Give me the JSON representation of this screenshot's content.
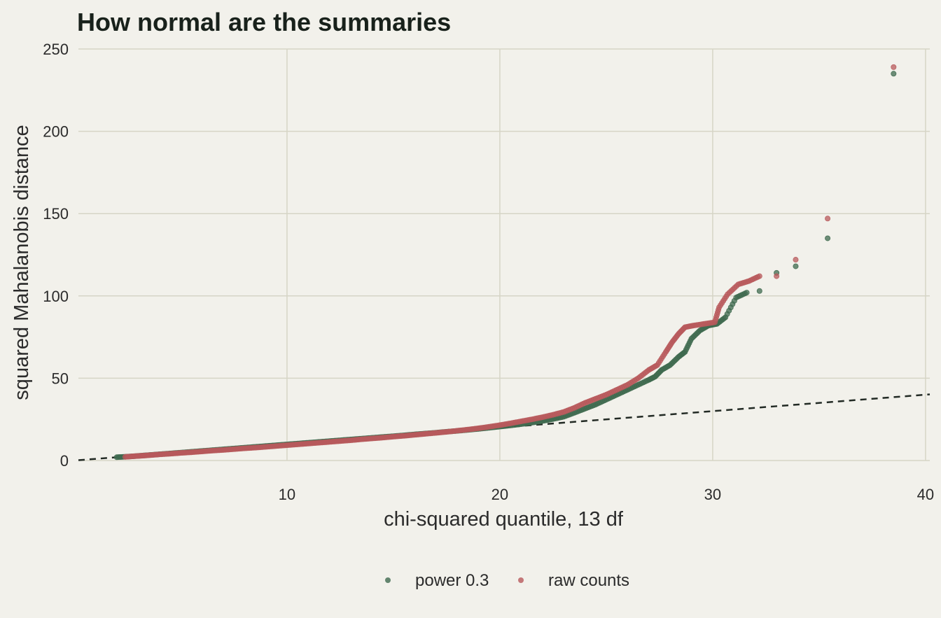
{
  "chart_data": {
    "type": "scatter",
    "title": "How normal are the summaries",
    "xlabel": "chi-squared quantile, 13 df",
    "ylabel": "squared Mahalanobis distance",
    "xlim": [
      0.2,
      40.2
    ],
    "ylim": [
      0,
      250
    ],
    "xticks": [
      10,
      20,
      30,
      40
    ],
    "yticks": [
      0,
      50,
      100,
      150,
      200,
      250
    ],
    "grid": true,
    "legend_position": "bottom",
    "reference_line": {
      "style": "dashed",
      "slope": 1,
      "intercept": 0,
      "color": "#222a24"
    },
    "series": [
      {
        "name": "power 0.3",
        "color": "#3f6a4f",
        "points": [
          [
            2.0,
            2.0
          ],
          [
            2.4,
            2.3
          ],
          [
            2.8,
            2.6
          ],
          [
            3.2,
            3.0
          ],
          [
            3.6,
            3.4
          ],
          [
            4.0,
            3.8
          ],
          [
            4.5,
            4.3
          ],
          [
            5.0,
            4.8
          ],
          [
            5.5,
            5.3
          ],
          [
            6.0,
            5.8
          ],
          [
            6.5,
            6.3
          ],
          [
            7.0,
            6.8
          ],
          [
            7.5,
            7.3
          ],
          [
            8.0,
            7.8
          ],
          [
            8.5,
            8.3
          ],
          [
            9.0,
            8.8
          ],
          [
            9.5,
            9.3
          ],
          [
            10.0,
            9.8
          ],
          [
            10.5,
            10.3
          ],
          [
            11.0,
            10.8
          ],
          [
            11.5,
            11.3
          ],
          [
            12.0,
            11.8
          ],
          [
            12.5,
            12.3
          ],
          [
            13.0,
            12.8
          ],
          [
            13.5,
            13.3
          ],
          [
            14.0,
            13.8
          ],
          [
            14.5,
            14.3
          ],
          [
            15.0,
            14.8
          ],
          [
            15.5,
            15.3
          ],
          [
            16.0,
            15.9
          ],
          [
            16.5,
            16.4
          ],
          [
            17.0,
            16.9
          ],
          [
            17.5,
            17.5
          ],
          [
            18.0,
            18.0
          ],
          [
            18.5,
            18.6
          ],
          [
            19.0,
            19.2
          ],
          [
            19.5,
            19.9
          ],
          [
            20.0,
            20.6
          ],
          [
            20.5,
            21.3
          ],
          [
            21.0,
            22.1
          ],
          [
            21.5,
            23.0
          ],
          [
            22.0,
            24.0
          ],
          [
            22.5,
            25.2
          ],
          [
            23.0,
            26.6
          ],
          [
            23.5,
            29.0
          ],
          [
            24.0,
            31.5
          ],
          [
            24.5,
            34.0
          ],
          [
            25.0,
            37.0
          ],
          [
            25.5,
            40.0
          ],
          [
            26.0,
            43.0
          ],
          [
            26.5,
            46.0
          ],
          [
            27.0,
            49.0
          ],
          [
            27.3,
            51.0
          ],
          [
            27.6,
            55.0
          ],
          [
            28.0,
            58.0
          ],
          [
            28.4,
            63.0
          ],
          [
            28.7,
            66.0
          ],
          [
            29.0,
            74.0
          ],
          [
            29.4,
            79.0
          ],
          [
            29.8,
            82.0
          ],
          [
            30.2,
            83.0
          ],
          [
            30.6,
            87.0
          ],
          [
            31.1,
            99.0
          ],
          [
            31.6,
            102.0
          ],
          [
            32.2,
            103.0
          ],
          [
            33.0,
            114.0
          ],
          [
            33.9,
            118.0
          ],
          [
            35.4,
            135.0
          ],
          [
            38.5,
            235.0
          ]
        ]
      },
      {
        "name": "raw counts",
        "color": "#b85a5c",
        "points": [
          [
            2.4,
            2.2
          ],
          [
            2.8,
            2.6
          ],
          [
            3.2,
            2.9
          ],
          [
            3.6,
            3.3
          ],
          [
            4.0,
            3.7
          ],
          [
            4.5,
            4.1
          ],
          [
            5.0,
            4.6
          ],
          [
            5.5,
            5.0
          ],
          [
            6.0,
            5.5
          ],
          [
            6.5,
            6.0
          ],
          [
            7.0,
            6.4
          ],
          [
            7.5,
            6.9
          ],
          [
            8.0,
            7.4
          ],
          [
            8.5,
            7.8
          ],
          [
            9.0,
            8.3
          ],
          [
            9.5,
            8.8
          ],
          [
            10.0,
            9.3
          ],
          [
            10.5,
            9.8
          ],
          [
            11.0,
            10.3
          ],
          [
            11.5,
            10.8
          ],
          [
            12.0,
            11.3
          ],
          [
            12.5,
            11.8
          ],
          [
            13.0,
            12.3
          ],
          [
            13.5,
            12.9
          ],
          [
            14.0,
            13.4
          ],
          [
            14.5,
            13.9
          ],
          [
            15.0,
            14.5
          ],
          [
            15.5,
            15.0
          ],
          [
            16.0,
            15.6
          ],
          [
            16.5,
            16.2
          ],
          [
            17.0,
            16.8
          ],
          [
            17.5,
            17.4
          ],
          [
            18.0,
            18.1
          ],
          [
            18.5,
            18.8
          ],
          [
            19.0,
            19.6
          ],
          [
            19.5,
            20.5
          ],
          [
            20.0,
            21.5
          ],
          [
            20.5,
            22.6
          ],
          [
            21.0,
            23.8
          ],
          [
            21.5,
            25.0
          ],
          [
            22.0,
            26.3
          ],
          [
            22.5,
            27.8
          ],
          [
            23.0,
            29.5
          ],
          [
            23.5,
            32.0
          ],
          [
            24.0,
            35.0
          ],
          [
            24.5,
            37.5
          ],
          [
            25.0,
            40.0
          ],
          [
            25.5,
            43.0
          ],
          [
            26.0,
            46.0
          ],
          [
            26.5,
            50.0
          ],
          [
            27.0,
            55.0
          ],
          [
            27.4,
            58.0
          ],
          [
            27.8,
            66.0
          ],
          [
            28.1,
            72.0
          ],
          [
            28.4,
            77.0
          ],
          [
            28.7,
            81.0
          ],
          [
            29.1,
            82.0
          ],
          [
            29.6,
            83.0
          ],
          [
            30.1,
            84.0
          ],
          [
            30.3,
            93.0
          ],
          [
            30.7,
            101.0
          ],
          [
            31.2,
            107.0
          ],
          [
            31.7,
            109.0
          ],
          [
            32.2,
            112.0
          ],
          [
            33.0,
            112.0
          ],
          [
            33.9,
            122.0
          ],
          [
            35.4,
            147.0
          ],
          [
            38.5,
            239.0
          ]
        ]
      }
    ]
  }
}
